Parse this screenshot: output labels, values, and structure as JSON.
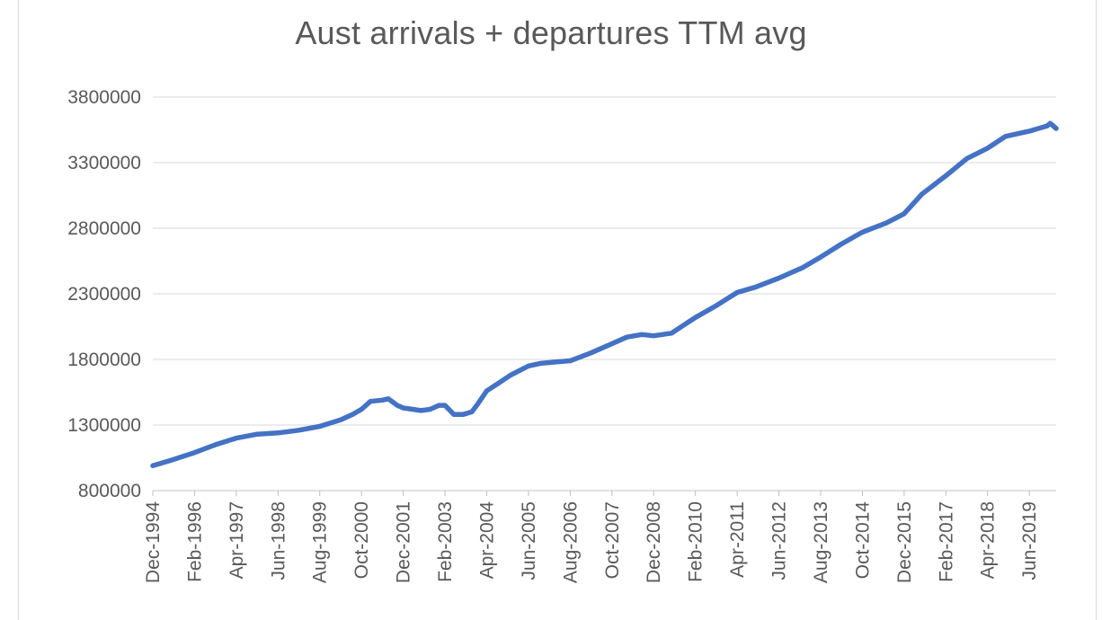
{
  "chart_data": {
    "type": "line",
    "title": "Aust arrivals + departures TTM avg",
    "xlabel": "",
    "ylabel": "",
    "ylim": [
      800000,
      3800000
    ],
    "yticks": [
      800000,
      1300000,
      1800000,
      2300000,
      2800000,
      3300000,
      3800000
    ],
    "ytick_labels": [
      "800000",
      "1300000",
      "1800000",
      "2300000",
      "2800000",
      "3300000",
      "3800000"
    ],
    "xlim": [
      "1994-12",
      "2020-03"
    ],
    "xticks": [
      "1994-12",
      "1996-02",
      "1997-04",
      "1998-06",
      "1999-08",
      "2000-10",
      "2001-12",
      "2003-02",
      "2004-04",
      "2005-06",
      "2006-08",
      "2007-10",
      "2008-12",
      "2010-02",
      "2011-04",
      "2012-06",
      "2013-08",
      "2014-10",
      "2015-12",
      "2017-02",
      "2018-04",
      "2019-06"
    ],
    "xtick_labels": [
      "Dec-1994",
      "Feb-1996",
      "Apr-1997",
      "Jun-1998",
      "Aug-1999",
      "Oct-2000",
      "Dec-2001",
      "Feb-2003",
      "Apr-2004",
      "Jun-2005",
      "Aug-2006",
      "Oct-2007",
      "Dec-2008",
      "Feb-2010",
      "Apr-2011",
      "Jun-2012",
      "Aug-2013",
      "Oct-2014",
      "Dec-2015",
      "Feb-2017",
      "Apr-2018",
      "Jun-2019"
    ],
    "grid": true,
    "legend": "none",
    "line_color": "#4472c4",
    "series": [
      {
        "x": [
          "1994-12",
          "1995-06",
          "1996-02",
          "1996-09",
          "1997-04",
          "1997-11",
          "1998-06",
          "1999-01",
          "1999-08",
          "2000-03",
          "2000-07",
          "2000-10",
          "2001-01",
          "2001-05",
          "2001-07",
          "2001-10",
          "2001-12",
          "2002-06",
          "2002-09",
          "2002-12",
          "2003-02",
          "2003-05",
          "2003-08",
          "2003-11",
          "2004-01",
          "2004-04",
          "2004-08",
          "2004-12",
          "2005-06",
          "2005-10",
          "2006-03",
          "2006-08",
          "2007-03",
          "2007-10",
          "2008-03",
          "2008-08",
          "2008-12",
          "2009-06",
          "2009-10",
          "2010-02",
          "2010-09",
          "2011-04",
          "2011-10",
          "2012-06",
          "2013-02",
          "2013-08",
          "2014-03",
          "2014-10",
          "2015-06",
          "2015-12",
          "2016-06",
          "2017-02",
          "2017-09",
          "2018-04",
          "2018-10",
          "2019-06",
          "2019-12",
          "2020-01",
          "2020-03"
        ],
        "values": [
          990000,
          1030000,
          1090000,
          1150000,
          1200000,
          1230000,
          1240000,
          1260000,
          1290000,
          1340000,
          1380000,
          1420000,
          1480000,
          1490000,
          1500000,
          1450000,
          1430000,
          1410000,
          1420000,
          1450000,
          1450000,
          1380000,
          1380000,
          1400000,
          1460000,
          1560000,
          1620000,
          1680000,
          1750000,
          1770000,
          1780000,
          1790000,
          1850000,
          1920000,
          1970000,
          1990000,
          1980000,
          2000000,
          2060000,
          2120000,
          2210000,
          2310000,
          2350000,
          2420000,
          2500000,
          2580000,
          2680000,
          2770000,
          2840000,
          2910000,
          3060000,
          3200000,
          3330000,
          3410000,
          3500000,
          3540000,
          3580000,
          3600000,
          3560000
        ]
      }
    ]
  }
}
